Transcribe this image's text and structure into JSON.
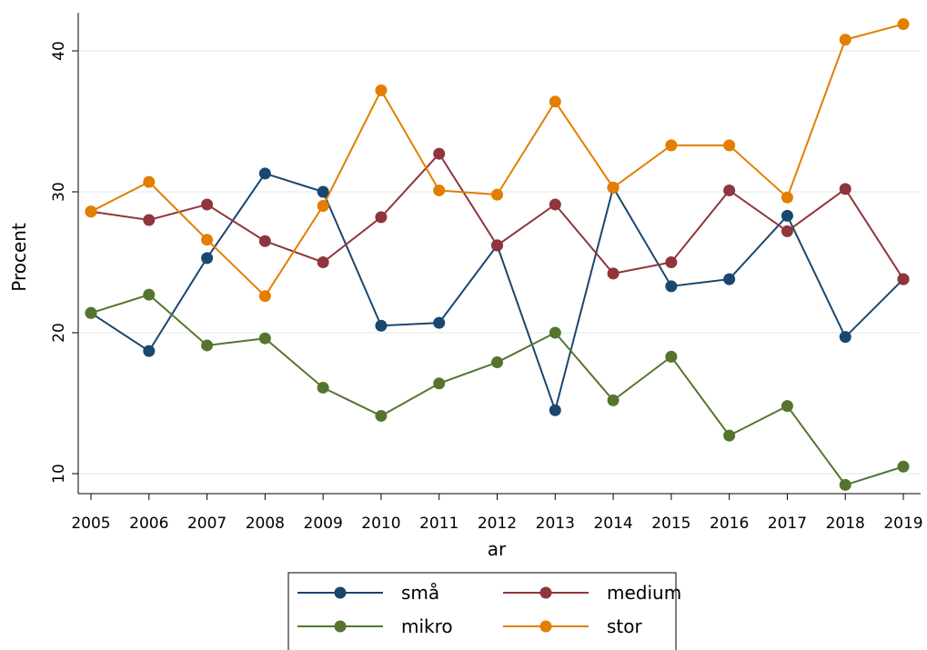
{
  "chart_data": {
    "type": "line",
    "xlabel": "ar",
    "ylabel": "Procent",
    "x": [
      2005,
      2006,
      2007,
      2008,
      2009,
      2010,
      2011,
      2012,
      2013,
      2014,
      2015,
      2016,
      2017,
      2018,
      2019
    ],
    "x_ticks": [
      "2005",
      "2006",
      "2007",
      "2008",
      "2009",
      "2010",
      "2011",
      "2012",
      "2013",
      "2014",
      "2015",
      "2016",
      "2017",
      "2018",
      "2019"
    ],
    "y_ticks": [
      "10",
      "20",
      "30",
      "40"
    ],
    "ylim": [
      8,
      43.5
    ],
    "grid": true,
    "legend_position": "bottom",
    "series": [
      {
        "name": "små",
        "color": "#1a476f",
        "values": [
          21.4,
          18.7,
          25.3,
          31.3,
          30.0,
          20.5,
          20.7,
          26.2,
          14.5,
          30.3,
          23.3,
          23.8,
          28.3,
          19.7,
          23.8
        ]
      },
      {
        "name": "medium",
        "color": "#90353b",
        "values": [
          28.6,
          28.0,
          29.1,
          26.5,
          25.0,
          28.2,
          32.7,
          26.2,
          29.1,
          24.2,
          25.0,
          30.1,
          27.2,
          30.2,
          23.8
        ]
      },
      {
        "name": "mikro",
        "color": "#55752f",
        "values": [
          21.4,
          22.7,
          19.1,
          19.6,
          16.1,
          14.1,
          16.4,
          17.9,
          20.0,
          15.2,
          18.3,
          12.7,
          14.8,
          9.2,
          10.5
        ]
      },
      {
        "name": "stor",
        "color": "#e37e00",
        "values": [
          28.6,
          30.7,
          26.6,
          22.6,
          29.0,
          37.2,
          30.1,
          29.8,
          36.4,
          30.3,
          33.3,
          33.3,
          29.6,
          40.8,
          41.9
        ]
      }
    ],
    "legend_order": [
      0,
      1,
      2,
      3
    ]
  }
}
